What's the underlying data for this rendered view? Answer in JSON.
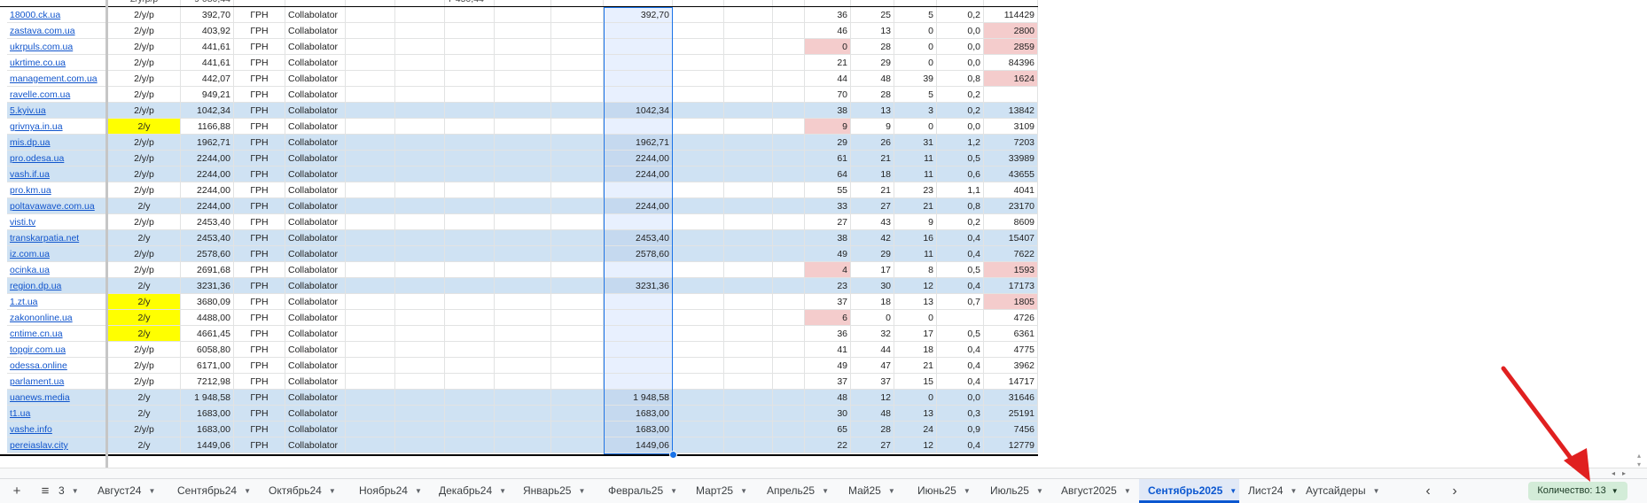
{
  "colors": {
    "yellow": "#ffff00",
    "blue_band": "#cfe2f3",
    "sel_light": "#e8f0fe",
    "sel_dark": "#c5d9ef",
    "pink": "#f4cccc",
    "active_tab": "#0b57d0",
    "count_badge_bg": "#d3ecd8",
    "arrow": "#e02020"
  },
  "partial_row": [
    "",
    "2/y/p/p",
    "9 080,44",
    "",
    "",
    "",
    "",
    "7 450,44",
    "",
    "",
    "",
    "",
    "",
    "",
    "",
    "",
    "",
    "",
    "",
    ""
  ],
  "rows": [
    {
      "site": "18000.ck.ua",
      "freq": "2/y/p",
      "price": "392,70",
      "cur": "ГРН",
      "manager": "Collabolator",
      "sel": "392,70",
      "m1": "36",
      "m2": "25",
      "m3": "5",
      "ratio": "0,2",
      "total": "114429",
      "band": false,
      "yellow": false,
      "pink_m1": false,
      "pink_total": false
    },
    {
      "site": "zastava.com.ua",
      "freq": "2/y/p",
      "price": "403,92",
      "cur": "ГРН",
      "manager": "Collabolator",
      "sel": "",
      "m1": "46",
      "m2": "13",
      "m3": "0",
      "ratio": "0,0",
      "total": "2800",
      "band": false,
      "yellow": false,
      "pink_m1": false,
      "pink_total": true
    },
    {
      "site": "ukrpuls.com.ua",
      "freq": "2/y/p",
      "price": "441,61",
      "cur": "ГРН",
      "manager": "Collabolator",
      "sel": "",
      "m1": "0",
      "m2": "28",
      "m3": "0",
      "ratio": "0,0",
      "total": "2859",
      "band": false,
      "yellow": false,
      "pink_m1": true,
      "pink_total": true
    },
    {
      "site": "ukrtime.co.ua",
      "freq": "2/y/p",
      "price": "441,61",
      "cur": "ГРН",
      "manager": "Collabolator",
      "sel": "",
      "m1": "21",
      "m2": "29",
      "m3": "0",
      "ratio": "0,0",
      "total": "84396",
      "band": false,
      "yellow": false,
      "pink_m1": false,
      "pink_total": false
    },
    {
      "site": "management.com.ua",
      "freq": "2/y/p",
      "price": "442,07",
      "cur": "ГРН",
      "manager": "Collabolator",
      "sel": "",
      "m1": "44",
      "m2": "48",
      "m3": "39",
      "ratio": "0,8",
      "total": "1624",
      "band": false,
      "yellow": false,
      "pink_m1": false,
      "pink_total": true
    },
    {
      "site": "ravelle.com.ua",
      "freq": "2/y/p",
      "price": "949,21",
      "cur": "ГРН",
      "manager": "Collabolator",
      "sel": "",
      "m1": "70",
      "m2": "28",
      "m3": "5",
      "ratio": "0,2",
      "total": "",
      "band": false,
      "yellow": false,
      "pink_m1": false,
      "pink_total": false
    },
    {
      "site": "5.kyiv.ua",
      "freq": "2/y/p",
      "price": "1042,34",
      "cur": "ГРН",
      "manager": "Collabolator",
      "sel": "1042,34",
      "m1": "38",
      "m2": "13",
      "m3": "3",
      "ratio": "0,2",
      "total": "13842",
      "band": true,
      "yellow": false,
      "pink_m1": false,
      "pink_total": false
    },
    {
      "site": "grivnya.in.ua",
      "freq": "2/y",
      "price": "1166,88",
      "cur": "ГРН",
      "manager": "Collabolator",
      "sel": "",
      "m1": "9",
      "m2": "9",
      "m3": "0",
      "ratio": "0,0",
      "total": "3109",
      "band": false,
      "yellow": true,
      "pink_m1": true,
      "pink_total": false
    },
    {
      "site": "mis.dp.ua",
      "freq": "2/y/p",
      "price": "1962,71",
      "cur": "ГРН",
      "manager": "Collabolator",
      "sel": "1962,71",
      "m1": "29",
      "m2": "26",
      "m3": "31",
      "ratio": "1,2",
      "total": "7203",
      "band": true,
      "yellow": false,
      "pink_m1": false,
      "pink_total": false
    },
    {
      "site": "pro.odesa.ua",
      "freq": "2/y/p",
      "price": "2244,00",
      "cur": "ГРН",
      "manager": "Collabolator",
      "sel": "2244,00",
      "m1": "61",
      "m2": "21",
      "m3": "11",
      "ratio": "0,5",
      "total": "33989",
      "band": true,
      "yellow": false,
      "pink_m1": false,
      "pink_total": false
    },
    {
      "site": "vash.if.ua",
      "freq": "2/y/p",
      "price": "2244,00",
      "cur": "ГРН",
      "manager": "Collabolator",
      "sel": "2244,00",
      "m1": "64",
      "m2": "18",
      "m3": "11",
      "ratio": "0,6",
      "total": "43655",
      "band": true,
      "yellow": false,
      "pink_m1": false,
      "pink_total": false
    },
    {
      "site": "pro.km.ua",
      "freq": "2/y/p",
      "price": "2244,00",
      "cur": "ГРН",
      "manager": "Collabolator",
      "sel": "",
      "m1": "55",
      "m2": "21",
      "m3": "23",
      "ratio": "1,1",
      "total": "4041",
      "band": false,
      "yellow": false,
      "pink_m1": false,
      "pink_total": false
    },
    {
      "site": "poltavawave.com.ua",
      "freq": "2/y",
      "price": "2244,00",
      "cur": "ГРН",
      "manager": "Collabolator",
      "sel": "2244,00",
      "m1": "33",
      "m2": "27",
      "m3": "21",
      "ratio": "0,8",
      "total": "23170",
      "band": true,
      "yellow": false,
      "pink_m1": false,
      "pink_total": false
    },
    {
      "site": "visti.tv",
      "freq": "2/y/p",
      "price": "2453,40",
      "cur": "ГРН",
      "manager": "Collabolator",
      "sel": "",
      "m1": "27",
      "m2": "43",
      "m3": "9",
      "ratio": "0,2",
      "total": "8609",
      "band": false,
      "yellow": false,
      "pink_m1": false,
      "pink_total": false
    },
    {
      "site": "transkarpatia.net",
      "freq": "2/y",
      "price": "2453,40",
      "cur": "ГРН",
      "manager": "Collabolator",
      "sel": "2453,40",
      "m1": "38",
      "m2": "42",
      "m3": "16",
      "ratio": "0,4",
      "total": "15407",
      "band": true,
      "yellow": false,
      "pink_m1": false,
      "pink_total": false
    },
    {
      "site": "iz.com.ua",
      "freq": "2/y/p",
      "price": "2578,60",
      "cur": "ГРН",
      "manager": "Collabolator",
      "sel": "2578,60",
      "m1": "49",
      "m2": "29",
      "m3": "11",
      "ratio": "0,4",
      "total": "7622",
      "band": true,
      "yellow": false,
      "pink_m1": false,
      "pink_total": false
    },
    {
      "site": "ocinka.ua",
      "freq": "2/y/p",
      "price": "2691,68",
      "cur": "ГРН",
      "manager": "Collabolator",
      "sel": "",
      "m1": "4",
      "m2": "17",
      "m3": "8",
      "ratio": "0,5",
      "total": "1593",
      "band": false,
      "yellow": false,
      "pink_m1": true,
      "pink_total": true
    },
    {
      "site": "region.dp.ua",
      "freq": "2/y",
      "price": "3231,36",
      "cur": "ГРН",
      "manager": "Collabolator",
      "sel": "3231,36",
      "m1": "23",
      "m2": "30",
      "m3": "12",
      "ratio": "0,4",
      "total": "17173",
      "band": true,
      "yellow": false,
      "pink_m1": false,
      "pink_total": false
    },
    {
      "site": "1.zt.ua",
      "freq": "2/y",
      "price": "3680,09",
      "cur": "ГРН",
      "manager": "Collabolator",
      "sel": "",
      "m1": "37",
      "m2": "18",
      "m3": "13",
      "ratio": "0,7",
      "total": "1805",
      "band": false,
      "yellow": true,
      "pink_m1": false,
      "pink_total": true
    },
    {
      "site": "zakononline.ua",
      "freq": "2/y",
      "price": "4488,00",
      "cur": "ГРН",
      "manager": "Collabolator",
      "sel": "",
      "m1": "6",
      "m2": "0",
      "m3": "0",
      "ratio": "",
      "total": "4726",
      "band": false,
      "yellow": true,
      "pink_m1": true,
      "pink_total": false
    },
    {
      "site": "cntime.cn.ua",
      "freq": "2/y",
      "price": "4661,45",
      "cur": "ГРН",
      "manager": "Collabolator",
      "sel": "",
      "m1": "36",
      "m2": "32",
      "m3": "17",
      "ratio": "0,5",
      "total": "6361",
      "band": false,
      "yellow": true,
      "pink_m1": false,
      "pink_total": false
    },
    {
      "site": "topgir.com.ua",
      "freq": "2/y/p",
      "price": "6058,80",
      "cur": "ГРН",
      "manager": "Collabolator",
      "sel": "",
      "m1": "41",
      "m2": "44",
      "m3": "18",
      "ratio": "0,4",
      "total": "4775",
      "band": false,
      "yellow": false,
      "pink_m1": false,
      "pink_total": false
    },
    {
      "site": "odessa.online",
      "freq": "2/y/p",
      "price": "6171,00",
      "cur": "ГРН",
      "manager": "Collabolator",
      "sel": "",
      "m1": "49",
      "m2": "47",
      "m3": "21",
      "ratio": "0,4",
      "total": "3962",
      "band": false,
      "yellow": false,
      "pink_m1": false,
      "pink_total": false
    },
    {
      "site": "parlament.ua",
      "freq": "2/y/p",
      "price": "7212,98",
      "cur": "ГРН",
      "manager": "Collabolator",
      "sel": "",
      "m1": "37",
      "m2": "37",
      "m3": "15",
      "ratio": "0,4",
      "total": "14717",
      "band": false,
      "yellow": false,
      "pink_m1": false,
      "pink_total": false
    },
    {
      "site": "uanews.media",
      "freq": "2/y",
      "price": "1 948,58",
      "cur": "ГРН",
      "manager": "Collabolator",
      "sel": "1 948,58",
      "m1": "48",
      "m2": "12",
      "m3": "0",
      "ratio": "0,0",
      "total": "31646",
      "band": true,
      "yellow": false,
      "pink_m1": false,
      "pink_total": false
    },
    {
      "site": "t1.ua",
      "freq": "2/y",
      "price": "1683,00",
      "cur": "ГРН",
      "manager": "Collabolator",
      "sel": "1683,00",
      "m1": "30",
      "m2": "48",
      "m3": "13",
      "ratio": "0,3",
      "total": "25191",
      "band": true,
      "yellow": false,
      "pink_m1": false,
      "pink_total": false
    },
    {
      "site": "vashe.info",
      "freq": "2/y/p",
      "price": "1683,00",
      "cur": "ГРН",
      "manager": "Collabolator",
      "sel": "1683,00",
      "m1": "65",
      "m2": "28",
      "m3": "24",
      "ratio": "0,9",
      "total": "7456",
      "band": true,
      "yellow": false,
      "pink_m1": false,
      "pink_total": false
    },
    {
      "site": "pereiaslav.city",
      "freq": "2/y",
      "price": "1449,06",
      "cur": "ГРН",
      "manager": "Collabolator",
      "sel": "1449,06",
      "m1": "22",
      "m2": "27",
      "m3": "12",
      "ratio": "0,4",
      "total": "12779",
      "band": true,
      "yellow": false,
      "pink_m1": false,
      "pink_total": false
    }
  ],
  "sheet_bar": {
    "add_label": "+",
    "menu_label": "≡",
    "truncated_tab": "3",
    "tabs": [
      {
        "label": "Август24",
        "active": false
      },
      {
        "label": "Сентябрь24",
        "active": false
      },
      {
        "label": "Октябрь24",
        "active": false
      },
      {
        "label": "Ноябрь24",
        "active": false
      },
      {
        "label": "Декабрь24",
        "active": false
      },
      {
        "label": "Январь25",
        "active": false
      },
      {
        "label": "Февраль25",
        "active": false
      },
      {
        "label": "Март25",
        "active": false
      },
      {
        "label": "Апрель25",
        "active": false
      },
      {
        "label": "Май25",
        "active": false
      },
      {
        "label": "Июнь25",
        "active": false
      },
      {
        "label": "Июль25",
        "active": false
      },
      {
        "label": "Август2025",
        "active": false
      },
      {
        "label": "Сентябрь2025",
        "active": true
      },
      {
        "label": "Лист24",
        "active": false
      },
      {
        "label": "Аутсайдеры",
        "active": false
      }
    ],
    "nav_prev": "‹",
    "nav_next": "›",
    "count_label": "Количество: 13"
  },
  "icons": {
    "add": "plus-icon",
    "menu": "all-sheets-icon",
    "caret": "caret-down-icon",
    "prev": "chevron-left-icon",
    "next": "chevron-right-icon",
    "arrow": "arrow-annotation-icon"
  }
}
